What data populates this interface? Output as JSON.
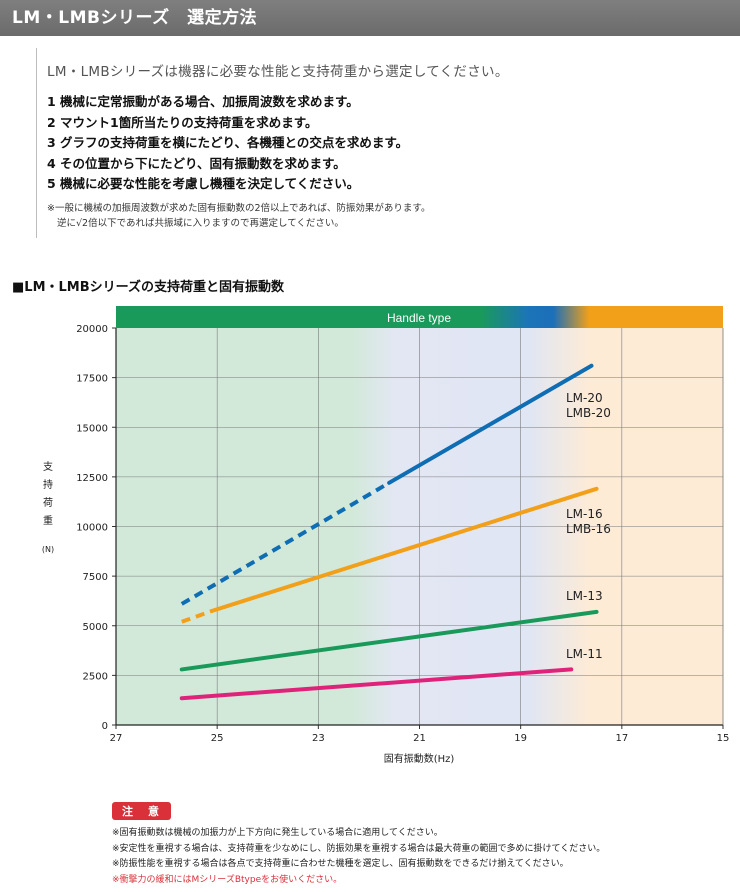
{
  "header": {
    "title": "LM・LMBシリーズ　選定方法"
  },
  "intro": {
    "lead": "LM・LMBシリーズは機器に必要な性能と支持荷重から選定してください。",
    "steps": [
      "1 機械に定常振動がある場合、加振周波数を求めます。",
      "2 マウント1箇所当たりの支持荷重を求めます。",
      "3 グラフの支持荷重を横にたどり、各機種との交点を求めます。",
      "4 その位置から下にたどり、固有振動数を求めます。",
      "5 機械に必要な性能を考慮し機種を決定してください。"
    ],
    "note_line1": "※一般に機械の加振周波数が求めた固有振動数の2倍以上であれば、防振効果があります。",
    "note_line2": "逆に√2倍以下であれば共振域に入りますので再選定してください。"
  },
  "section_title": "■LM・LMBシリーズの支持荷重と固有振動数",
  "chart_data": {
    "type": "line",
    "banner": "Handle type",
    "xlabel": "固有振動数(Hz)",
    "ylabel": "支持荷重",
    "ylabel_unit": "(N)",
    "xlim": [
      27,
      15
    ],
    "ylim": [
      0,
      20000
    ],
    "xticks": [
      27,
      25,
      23,
      21,
      19,
      17,
      15
    ],
    "yticks": [
      0,
      2500,
      5000,
      7500,
      10000,
      12500,
      15000,
      17500,
      20000
    ],
    "grid": true,
    "colors": {
      "green": "#1a9a5a",
      "blue": "#0f6db3",
      "orange": "#f2a019",
      "pink": "#e0237a"
    },
    "series": [
      {
        "name": "LM-20",
        "name2": "LMB-20",
        "color": "#0f6db3",
        "dashed": {
          "x": [
            25.7,
            21.6
          ],
          "y": [
            6100,
            12200
          ]
        },
        "solid": {
          "x": [
            21.6,
            17.6
          ],
          "y": [
            12200,
            18100
          ]
        }
      },
      {
        "name": "LM-16",
        "name2": "LMB-16",
        "color": "#f2a019",
        "dashed": {
          "x": [
            25.7,
            25.1
          ],
          "y": [
            5200,
            5750
          ]
        },
        "solid": {
          "x": [
            25.1,
            17.5
          ],
          "y": [
            5750,
            11900
          ]
        }
      },
      {
        "name": "LM-13",
        "color": "#1a9a5a",
        "solid": {
          "x": [
            25.7,
            17.5
          ],
          "y": [
            2800,
            5700
          ]
        }
      },
      {
        "name": "LM-11",
        "color": "#e0237a",
        "solid": {
          "x": [
            25.7,
            18.0
          ],
          "y": [
            1350,
            2800
          ]
        }
      }
    ]
  },
  "caution": {
    "label": "注　意",
    "items": [
      "※固有振動数は機械の加振力が上下方向に発生している場合に適用してください。",
      "※安定性を重視する場合は、支持荷重を少なめにし、防振効果を重視する場合は最大荷重の範囲で多めに掛けてください。",
      "※防振性能を重視する場合は各点で支持荷重に合わせた機種を選定し、固有振動数をできるだけ揃えてください。"
    ],
    "red_item": "※衝撃力の緩和にはMシリーズBtypeをお使いください。"
  }
}
